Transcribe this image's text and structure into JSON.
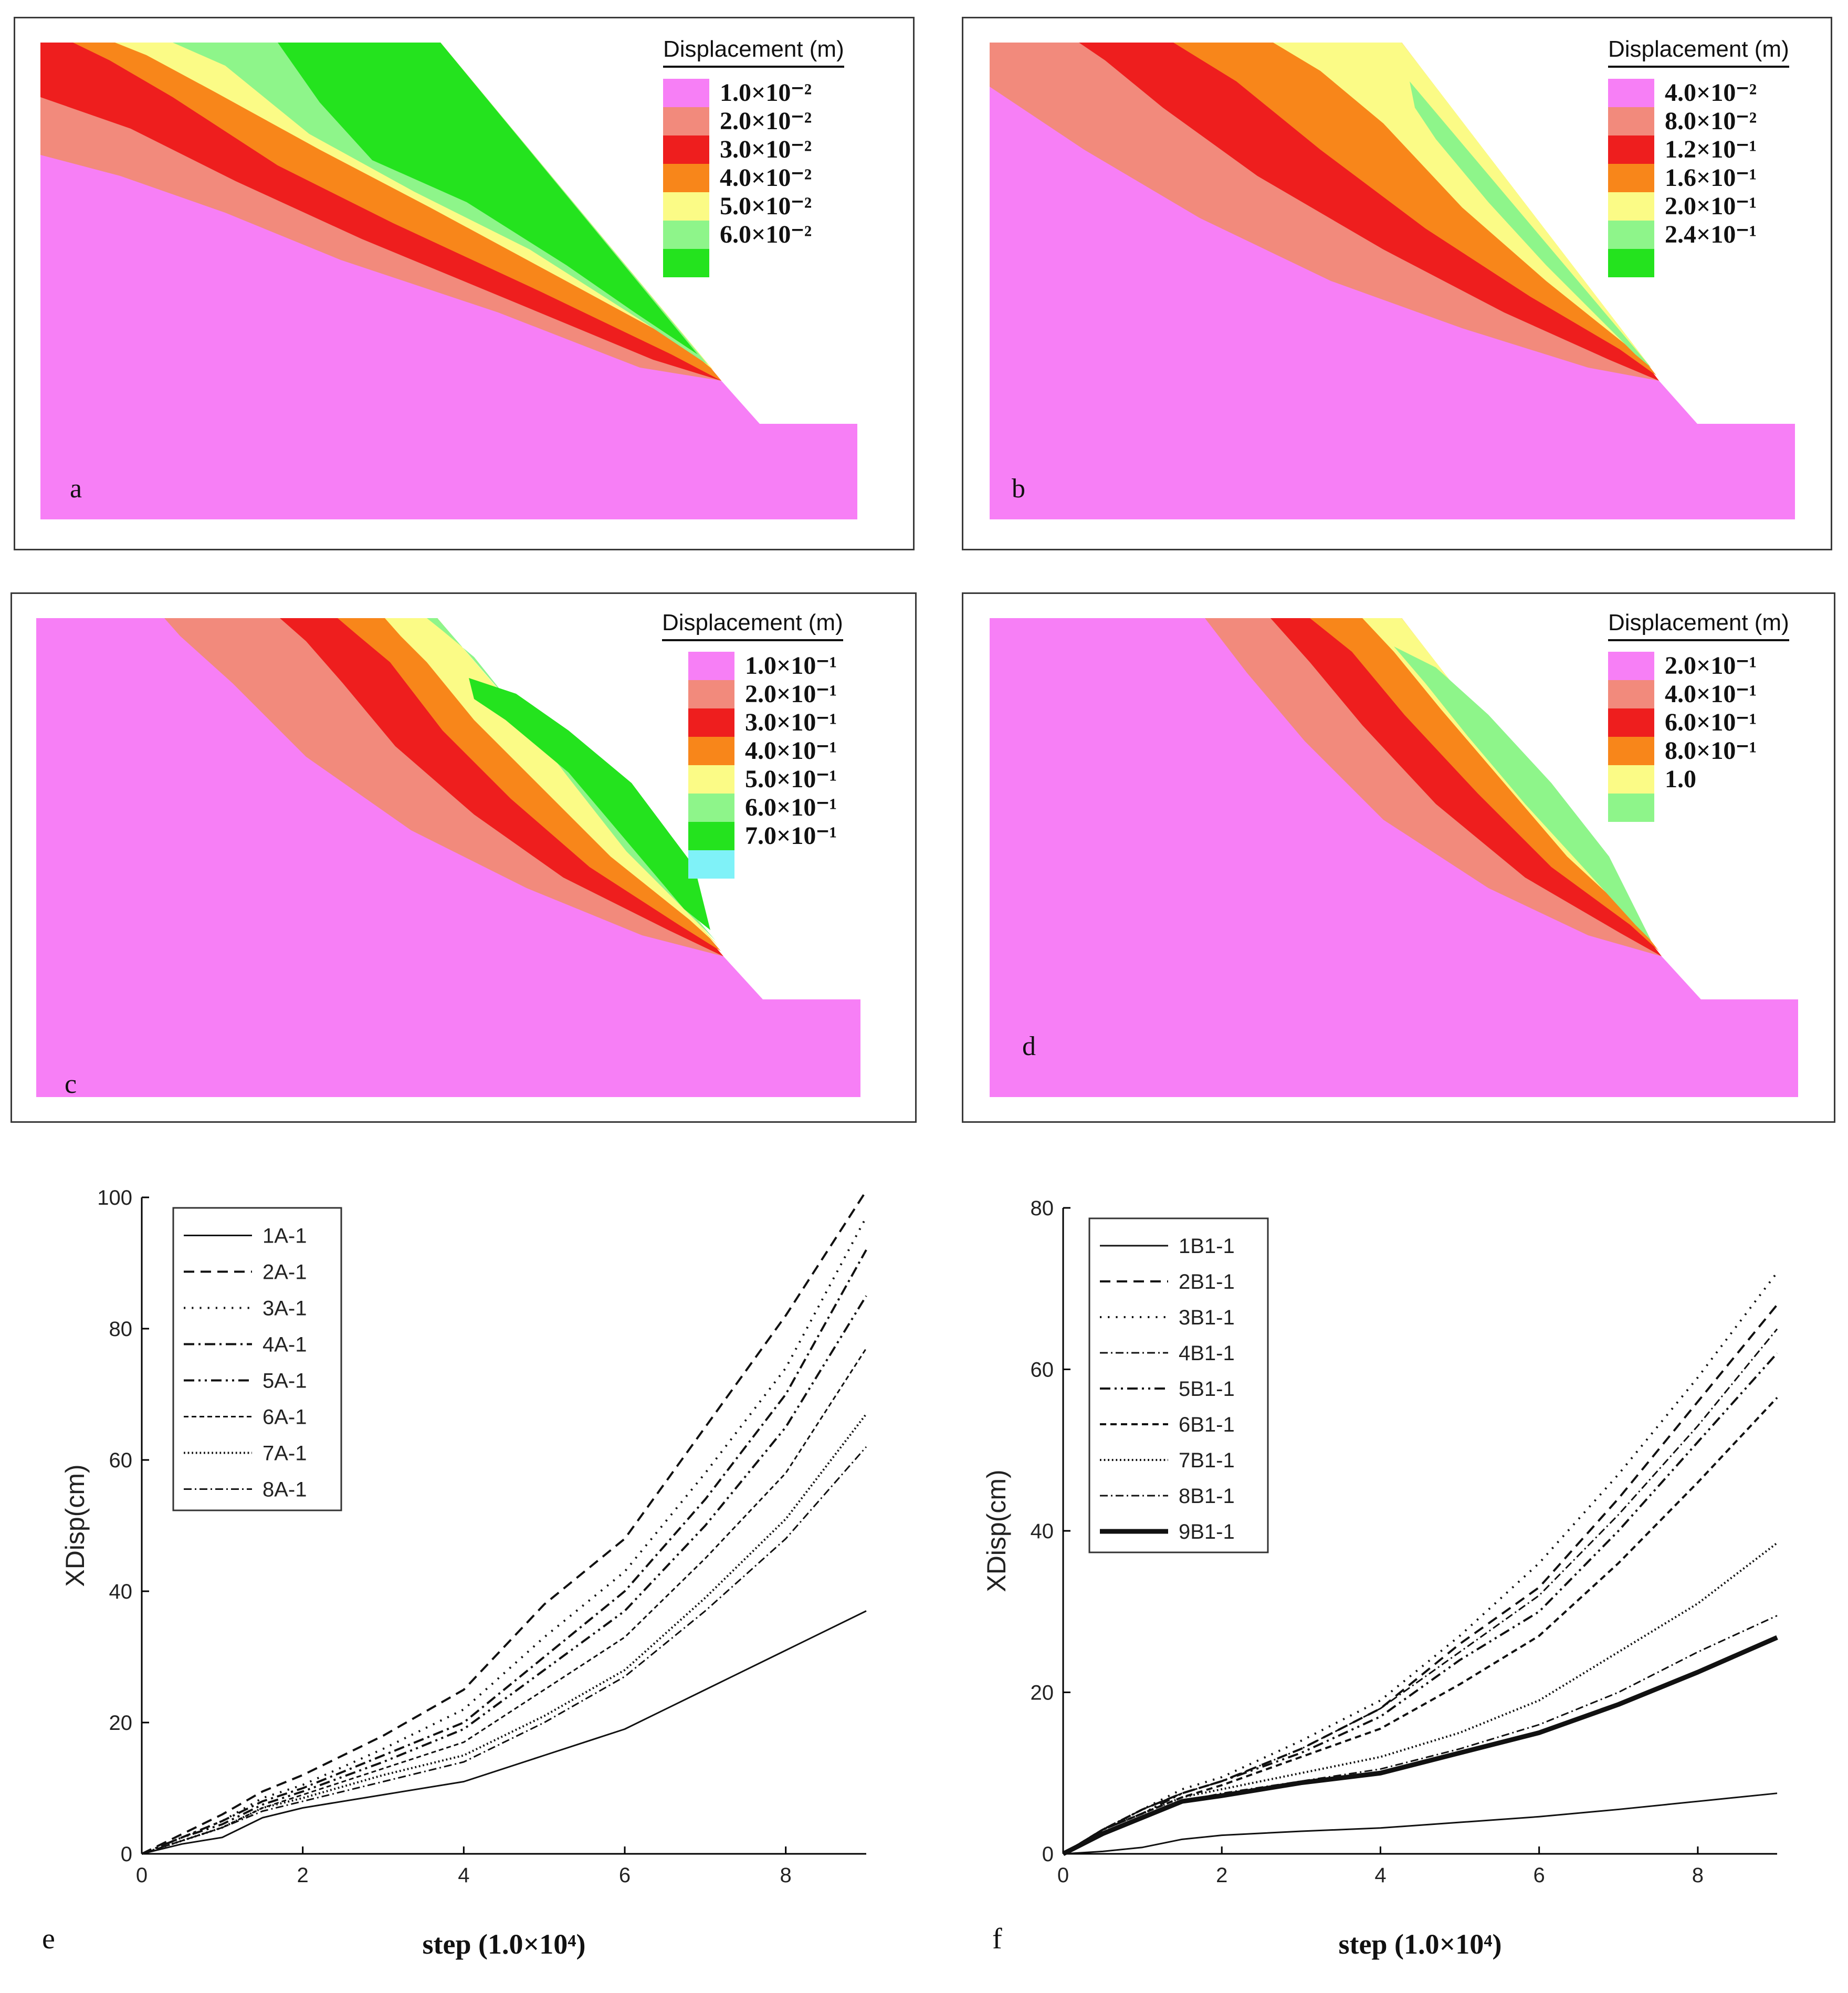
{
  "panels": [
    {
      "id": "a",
      "label": "a",
      "legend_title": "Displacement (m)",
      "legend": [
        {
          "label": "1.0×10⁻²",
          "color": "#f77ff6"
        },
        {
          "label": "2.0×10⁻²",
          "color": "#f28a7c"
        },
        {
          "label": "3.0×10⁻²",
          "color": "#ee1e1e"
        },
        {
          "label": "4.0×10⁻²",
          "color": "#f8861a"
        },
        {
          "label": "5.0×10⁻²",
          "color": "#fbfb86"
        },
        {
          "label": "6.0×10⁻²",
          "color": "#8ef58a"
        },
        {
          "label": "",
          "color": "#24e31e"
        }
      ]
    },
    {
      "id": "b",
      "label": "b",
      "legend_title": "Displacement (m)",
      "legend": [
        {
          "label": "4.0×10⁻²",
          "color": "#f77ff6"
        },
        {
          "label": "8.0×10⁻²",
          "color": "#f28a7c"
        },
        {
          "label": "1.2×10⁻¹",
          "color": "#ee1e1e"
        },
        {
          "label": "1.6×10⁻¹",
          "color": "#f8861a"
        },
        {
          "label": "2.0×10⁻¹",
          "color": "#fbfb86"
        },
        {
          "label": "2.4×10⁻¹",
          "color": "#8ef58a"
        },
        {
          "label": "",
          "color": "#24e31e"
        }
      ]
    },
    {
      "id": "c",
      "label": "c",
      "legend_title": "Displacement (m)",
      "legend": [
        {
          "label": "1.0×10⁻¹",
          "color": "#f77ff6"
        },
        {
          "label": "2.0×10⁻¹",
          "color": "#f28a7c"
        },
        {
          "label": "3.0×10⁻¹",
          "color": "#ee1e1e"
        },
        {
          "label": "4.0×10⁻¹",
          "color": "#f8861a"
        },
        {
          "label": "5.0×10⁻¹",
          "color": "#fbfb86"
        },
        {
          "label": "6.0×10⁻¹",
          "color": "#8ef58a"
        },
        {
          "label": "7.0×10⁻¹",
          "color": "#24e31e"
        },
        {
          "label": "",
          "color": "#7ff2f8"
        }
      ]
    },
    {
      "id": "d",
      "label": "d",
      "legend_title": "Displacement (m)",
      "legend": [
        {
          "label": "2.0×10⁻¹",
          "color": "#f77ff6"
        },
        {
          "label": "4.0×10⁻¹",
          "color": "#f28a7c"
        },
        {
          "label": "6.0×10⁻¹",
          "color": "#ee1e1e"
        },
        {
          "label": "8.0×10⁻¹",
          "color": "#f8861a"
        },
        {
          "label": "1.0",
          "color": "#fbfb86"
        },
        {
          "label": "",
          "color": "#8ef58a"
        }
      ]
    }
  ],
  "chart_data": [
    {
      "type": "line",
      "panel_label": "e",
      "title": "",
      "xlabel": "step (1.0×10⁴)",
      "ylabel": "XDisp(cm)",
      "xlim": [
        0,
        9
      ],
      "ylim": [
        0,
        100
      ],
      "xticks": [
        0,
        2,
        4,
        6,
        8
      ],
      "yticks": [
        0,
        20,
        40,
        60,
        80,
        100
      ],
      "x": [
        0,
        0.5,
        1,
        1.5,
        2,
        3,
        4,
        5,
        6,
        7,
        8,
        9
      ],
      "series": [
        {
          "name": "1A-1",
          "dash": "solid",
          "width": 3,
          "values": [
            0,
            1.5,
            2.5,
            5.5,
            7,
            9,
            11,
            15,
            19,
            25,
            31,
            37
          ]
        },
        {
          "name": "2A-1",
          "dash": "longdash",
          "width": 4,
          "values": [
            0,
            3,
            6,
            9.5,
            12,
            18,
            25,
            38,
            48,
            65,
            82,
            101
          ]
        },
        {
          "name": "3A-1",
          "dash": "dot",
          "width": 4,
          "values": [
            0,
            2.5,
            5,
            8.5,
            10.5,
            16,
            22,
            33,
            43,
            58,
            74,
            97
          ]
        },
        {
          "name": "4A-1",
          "dash": "dashdot",
          "width": 4,
          "values": [
            0,
            2.5,
            5,
            8,
            10,
            15,
            20,
            30,
            40,
            54,
            70,
            92
          ]
        },
        {
          "name": "5A-1",
          "dash": "dashdotdot",
          "width": 4,
          "values": [
            0,
            2.5,
            4.5,
            7.5,
            9.5,
            14,
            19,
            28,
            37,
            50,
            65,
            85
          ]
        },
        {
          "name": "6A-1",
          "dash": "shortdash",
          "width": 3,
          "values": [
            0,
            2,
            4,
            7,
            9,
            13,
            17,
            25,
            33,
            45,
            58,
            77
          ]
        },
        {
          "name": "7A-1",
          "dash": "densedot",
          "width": 4,
          "values": [
            0,
            2,
            4,
            7,
            8.5,
            12,
            15,
            21,
            28,
            39,
            51,
            67
          ]
        },
        {
          "name": "8A-1",
          "dash": "dashdot",
          "width": 3,
          "values": [
            0,
            2,
            4,
            6.5,
            8,
            11,
            14,
            20,
            27,
            37,
            48,
            62
          ]
        }
      ]
    },
    {
      "type": "line",
      "panel_label": "f",
      "title": "",
      "xlabel": "step (1.0×10⁴)",
      "ylabel": "XDisp(cm)",
      "xlim": [
        0,
        9
      ],
      "ylim": [
        0,
        80
      ],
      "xticks": [
        0,
        2,
        4,
        6,
        8
      ],
      "yticks": [
        0,
        20,
        40,
        60,
        80
      ],
      "x": [
        0,
        0.5,
        1,
        1.5,
        2,
        3,
        4,
        5,
        6,
        7,
        8,
        9
      ],
      "series": [
        {
          "name": "1B1-1",
          "dash": "solid",
          "width": 3,
          "values": [
            0,
            0.3,
            0.8,
            1.8,
            2.3,
            2.8,
            3.2,
            3.9,
            4.6,
            5.5,
            6.5,
            7.5
          ]
        },
        {
          "name": "2B1-1",
          "dash": "longdash",
          "width": 4,
          "values": [
            0,
            3,
            5.5,
            7.5,
            9,
            13,
            18,
            26,
            33,
            44,
            56,
            68
          ]
        },
        {
          "name": "3B1-1",
          "dash": "dot",
          "width": 4,
          "values": [
            0,
            3,
            5.5,
            8,
            9.5,
            14,
            19,
            27,
            36,
            47,
            59,
            72
          ]
        },
        {
          "name": "4B1-1",
          "dash": "dashdot",
          "width": 3,
          "values": [
            0,
            3,
            5.5,
            7.5,
            9,
            13,
            18,
            25,
            32,
            42,
            53,
            65
          ]
        },
        {
          "name": "5B1-1",
          "dash": "dashdotdot",
          "width": 4,
          "values": [
            0,
            3,
            5,
            7.5,
            9,
            12.5,
            17,
            24,
            30,
            40,
            51,
            62
          ]
        },
        {
          "name": "6B1-1",
          "dash": "shortdash",
          "width": 4,
          "values": [
            0,
            3,
            5,
            7,
            8.5,
            12,
            15.5,
            21,
            27,
            36,
            46,
            56.5
          ]
        },
        {
          "name": "7B1-1",
          "dash": "densedot",
          "width": 4,
          "values": [
            0,
            3,
            5,
            7,
            8,
            10,
            12,
            15,
            19,
            25,
            31,
            38.5
          ]
        },
        {
          "name": "8B1-1",
          "dash": "dashdot",
          "width": 3,
          "values": [
            0,
            2.5,
            4.5,
            6.5,
            7.5,
            9,
            10.5,
            13,
            16,
            20,
            25,
            29.5
          ]
        },
        {
          "name": "9B1-1",
          "dash": "solid",
          "width": 9,
          "values": [
            0,
            2.5,
            4.5,
            6.5,
            7.2,
            8.8,
            10,
            12.5,
            15,
            18.5,
            22.5,
            26.8
          ]
        }
      ]
    }
  ]
}
